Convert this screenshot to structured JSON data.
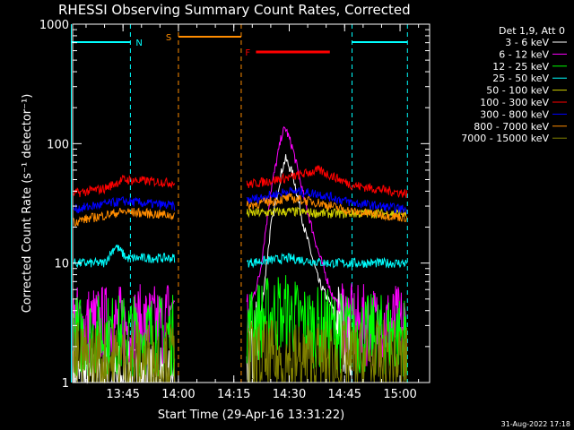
{
  "chart_data": {
    "type": "line",
    "title": "RHESSI Observing Summary Count Rates, Corrected",
    "xlabel": "Start Time (29-Apr-16 13:31:22)",
    "ylabel": "Corrected Count Rate (s⁻¹ detector⁻¹)",
    "yscale": "log",
    "ylim": [
      1,
      1000
    ],
    "xlim_minutes_label": [
      "13:31:22",
      "15:08:00"
    ],
    "x_ticks": [
      "13:45",
      "14:00",
      "14:15",
      "14:30",
      "14:45",
      "15:00"
    ],
    "y_ticks": [
      "1",
      "10",
      "100",
      "1000"
    ],
    "footer_date": "31-Aug-2022 17:18",
    "legend_header": "Det 1,9, Att 0",
    "legend": [
      {
        "label": "3 - 6 keV",
        "color": "#ffffff"
      },
      {
        "label": "6 - 12 keV",
        "color": "#ff00ff"
      },
      {
        "label": "12 - 25 keV",
        "color": "#00ff00"
      },
      {
        "label": "25 - 50 keV",
        "color": "#00ffff"
      },
      {
        "label": "50 - 100 keV",
        "color": "#d2d200"
      },
      {
        "label": "100 - 300 keV",
        "color": "#ff0000"
      },
      {
        "label": "300 - 800 keV",
        "color": "#0000ff"
      },
      {
        "label": "800 - 7000 keV",
        "color": "#ff8c00"
      },
      {
        "label": "7000 - 15000 keV",
        "color": "#808000"
      }
    ],
    "flags": [
      {
        "label": "N",
        "color": "#00ffff",
        "segments": [
          [
            "13:31",
            "13:47"
          ],
          [
            "14:47",
            "15:02"
          ]
        ]
      },
      {
        "label": "S",
        "color": "#ff8c00",
        "segments": [
          [
            "14:00",
            "14:17"
          ]
        ]
      },
      {
        "label": "F",
        "color": "#ff0000",
        "segments": [
          [
            "14:21",
            "14:41"
          ]
        ]
      }
    ],
    "series": [
      {
        "name": "3 - 6 keV",
        "color": "#ffffff",
        "x": [
          "13:31",
          "13:45",
          "13:55",
          "13:59",
          "14:18",
          "14:22",
          "14:25",
          "14:28",
          "14:29",
          "14:31",
          "14:34",
          "14:38",
          "14:42",
          "14:47"
        ],
        "y": [
          1,
          1,
          1,
          1,
          1,
          3,
          20,
          60,
          75,
          55,
          20,
          7,
          4,
          2
        ]
      },
      {
        "name": "6 - 12 keV",
        "color": "#ff00ff",
        "x": [
          "13:31",
          "13:50",
          "13:56",
          "13:59",
          "14:18",
          "14:22",
          "14:25",
          "14:28",
          "14:29",
          "14:31",
          "14:34",
          "14:38",
          "14:42",
          "14:47",
          "15:02"
        ],
        "y": [
          3,
          3,
          3,
          5,
          3,
          8,
          40,
          120,
          135,
          90,
          35,
          12,
          5,
          3,
          3
        ]
      },
      {
        "name": "12 - 25 keV",
        "color": "#00ff00",
        "x": [
          "13:31",
          "13:59",
          "14:18",
          "14:28",
          "14:35",
          "14:47",
          "15:02"
        ],
        "y": [
          2.5,
          2.5,
          3,
          4,
          3,
          2.5,
          2.5
        ]
      },
      {
        "name": "25 - 50 keV",
        "color": "#00ffff",
        "x": [
          "13:31",
          "13:40",
          "13:43",
          "13:46",
          "13:59",
          "14:18",
          "14:30",
          "14:40",
          "14:47",
          "15:02"
        ],
        "y": [
          10,
          10,
          14,
          11,
          11,
          10,
          11,
          10,
          10,
          10
        ]
      },
      {
        "name": "50 - 100 keV",
        "color": "#d2d200",
        "x": [
          "14:18",
          "14:30",
          "14:40",
          "15:02"
        ],
        "y": [
          26,
          27,
          26,
          26
        ]
      },
      {
        "name": "100 - 300 keV",
        "color": "#ff0000",
        "x": [
          "13:31",
          "13:40",
          "13:45",
          "13:59",
          "14:18",
          "14:30",
          "14:38",
          "14:47",
          "15:02"
        ],
        "y": [
          38,
          42,
          50,
          47,
          45,
          52,
          60,
          45,
          38
        ]
      },
      {
        "name": "300 - 800 keV",
        "color": "#0000ff",
        "x": [
          "13:31",
          "13:45",
          "13:59",
          "14:18",
          "14:30",
          "14:38",
          "14:47",
          "15:02"
        ],
        "y": [
          28,
          33,
          30,
          33,
          40,
          38,
          32,
          28
        ]
      },
      {
        "name": "800 - 7000 keV",
        "color": "#ff8c00",
        "x": [
          "13:31",
          "13:45",
          "13:59",
          "14:18",
          "14:30",
          "14:38",
          "14:47",
          "15:02"
        ],
        "y": [
          22,
          27,
          25,
          30,
          35,
          32,
          27,
          24
        ]
      },
      {
        "name": "7000 - 15000 keV",
        "color": "#808000",
        "x": [
          "13:31",
          "13:59",
          "14:18",
          "14:47",
          "15:02"
        ],
        "y": [
          1.5,
          1.5,
          1.5,
          1.5,
          1.5
        ]
      }
    ]
  }
}
